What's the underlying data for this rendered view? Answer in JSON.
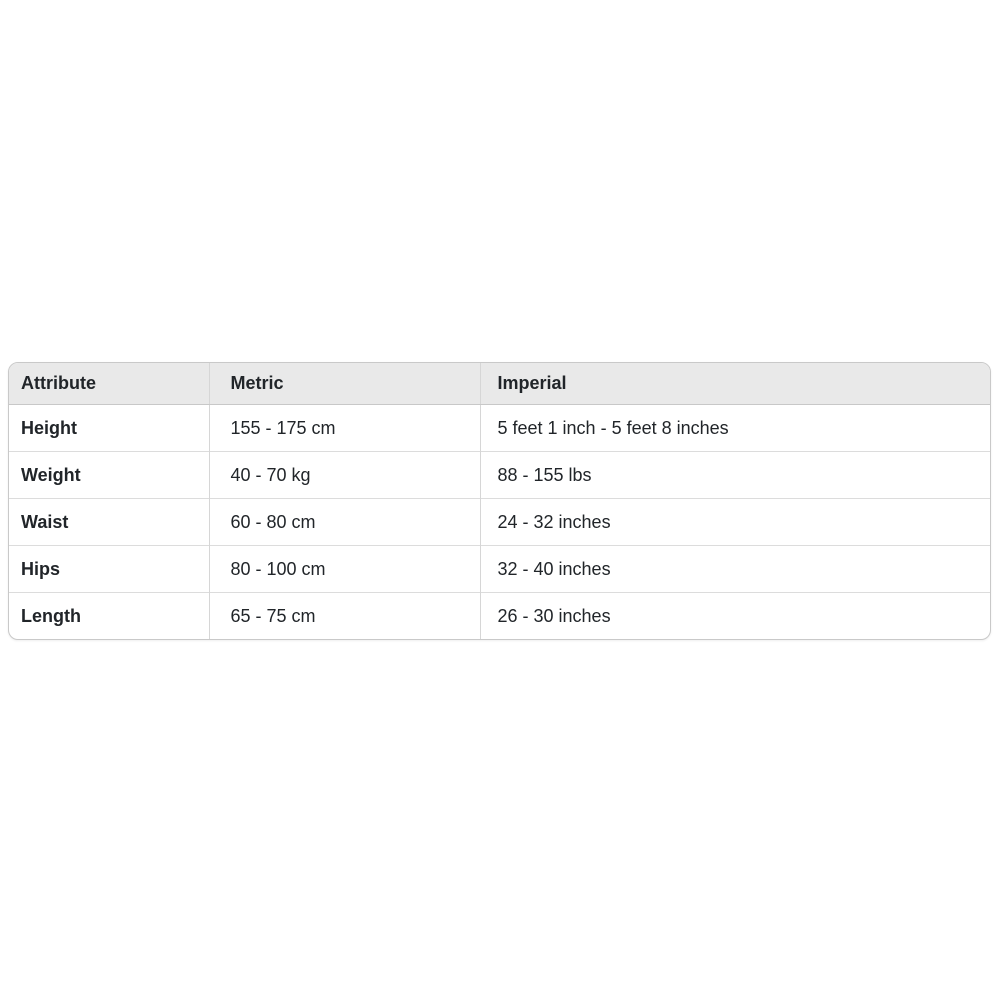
{
  "chart_data": {
    "type": "table",
    "columns": [
      "Attribute",
      "Metric",
      "Imperial"
    ],
    "rows": [
      [
        "Height",
        "155 - 175 cm",
        "5 feet 1 inch - 5 feet 8 inches"
      ],
      [
        "Weight",
        "40 - 70 kg",
        "88 - 155 lbs"
      ],
      [
        "Waist",
        "60 - 80 cm",
        "24 - 32 inches"
      ],
      [
        "Hips",
        "80 - 100 cm",
        "32 - 40 inches"
      ],
      [
        "Length",
        "65 - 75 cm",
        "26 - 30 inches"
      ]
    ],
    "legend": "none",
    "grid": "cell-borders"
  },
  "colors": {
    "page_bg": "#ffffff",
    "header_bg": "#e9e9e9",
    "table_border": "#c9c9c9",
    "column_divider": "#d6d6d6",
    "row_divider": "#dcdcdc",
    "text": "#212529"
  }
}
